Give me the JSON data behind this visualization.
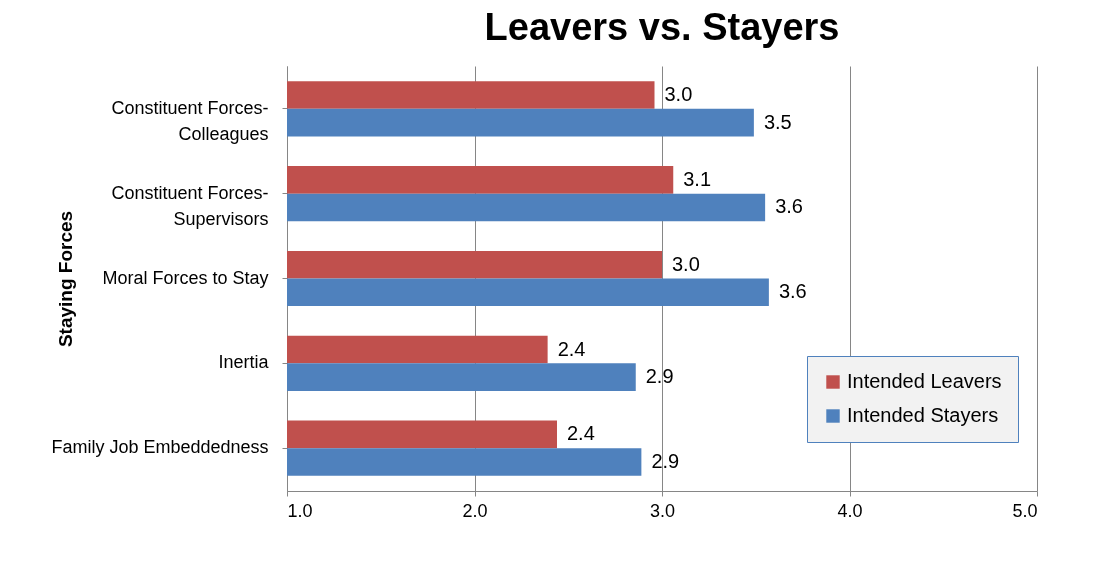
{
  "chart_data": {
    "type": "bar",
    "orientation": "horizontal",
    "title": "Leavers vs. Stayers",
    "ylabel": "Staying Forces",
    "categories": [
      "Constituent Forces-Colleagues",
      "Constituent Forces-Supervisors",
      "Moral Forces to Stay",
      "Inertia",
      "Family Job Embeddedness"
    ],
    "series": [
      {
        "name": "Intended Leavers",
        "color": "#c0504d",
        "values": [
          2.96,
          3.06,
          3.0,
          2.39,
          2.44
        ],
        "value_labels": [
          "3.0",
          "3.1",
          "3.0",
          "2.4",
          "2.4"
        ]
      },
      {
        "name": "Intended Stayers",
        "color": "#4f81bd",
        "values": [
          3.49,
          3.55,
          3.57,
          2.86,
          2.89
        ],
        "value_labels": [
          "3.5",
          "3.6",
          "3.6",
          "2.9",
          "2.9"
        ]
      }
    ],
    "xlim": [
      1,
      5
    ],
    "xticks": [
      {
        "value": 1,
        "label": "1.0"
      },
      {
        "value": 2,
        "label": "2.0"
      },
      {
        "value": 3,
        "label": "3.0"
      },
      {
        "value": 4,
        "label": "4.0"
      },
      {
        "value": 5,
        "label": "5.0"
      }
    ],
    "grid": "x",
    "legend": "bottom right"
  }
}
